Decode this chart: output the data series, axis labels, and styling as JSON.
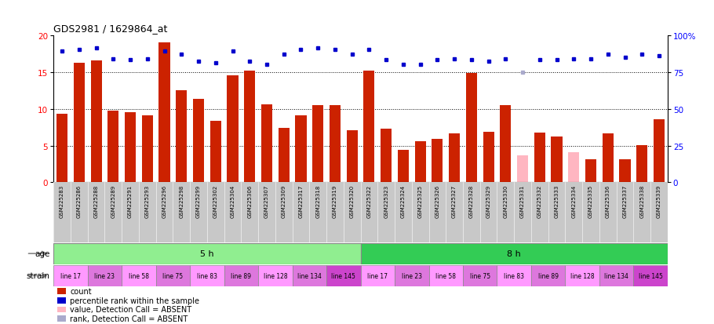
{
  "title": "GDS2981 / 1629864_at",
  "samples": [
    "GSM225283",
    "GSM225286",
    "GSM225288",
    "GSM225289",
    "GSM225291",
    "GSM225293",
    "GSM225296",
    "GSM225298",
    "GSM225299",
    "GSM225302",
    "GSM225304",
    "GSM225306",
    "GSM225307",
    "GSM225309",
    "GSM225317",
    "GSM225318",
    "GSM225319",
    "GSM225320",
    "GSM225322",
    "GSM225323",
    "GSM225324",
    "GSM225325",
    "GSM225326",
    "GSM225327",
    "GSM225328",
    "GSM225329",
    "GSM225330",
    "GSM225331",
    "GSM225332",
    "GSM225333",
    "GSM225334",
    "GSM225335",
    "GSM225336",
    "GSM225337",
    "GSM225338",
    "GSM225339"
  ],
  "bar_values": [
    9.3,
    16.2,
    16.5,
    9.7,
    9.5,
    9.1,
    19.0,
    12.5,
    11.3,
    8.3,
    14.5,
    15.2,
    10.6,
    7.4,
    9.1,
    10.5,
    10.5,
    7.1,
    15.2,
    7.3,
    4.4,
    5.6,
    5.9,
    6.7,
    14.8,
    6.9,
    10.5,
    3.7,
    6.8,
    6.2,
    4.1,
    3.1,
    6.7,
    3.1,
    5.1,
    8.6
  ],
  "bar_absent": [
    false,
    false,
    false,
    false,
    false,
    false,
    false,
    false,
    false,
    false,
    false,
    false,
    false,
    false,
    false,
    false,
    false,
    false,
    false,
    false,
    false,
    false,
    false,
    false,
    false,
    false,
    false,
    true,
    false,
    false,
    true,
    false,
    false,
    false,
    false,
    false
  ],
  "percentile_values": [
    89,
    90,
    91,
    84,
    83,
    84,
    89,
    87,
    82,
    81,
    89,
    82,
    80,
    87,
    90,
    91,
    90,
    87,
    90,
    83,
    80,
    80,
    83,
    84,
    83,
    82,
    84,
    75,
    83,
    83,
    84,
    84,
    87,
    85,
    87,
    86
  ],
  "percentile_absent": [
    false,
    false,
    false,
    false,
    false,
    false,
    false,
    false,
    false,
    false,
    false,
    false,
    false,
    false,
    false,
    false,
    false,
    false,
    false,
    false,
    false,
    false,
    false,
    false,
    false,
    false,
    false,
    true,
    false,
    false,
    false,
    false,
    false,
    false,
    false,
    false
  ],
  "age_groups": [
    {
      "label": "5 h",
      "color": "#90EE90",
      "start": 0,
      "end": 18
    },
    {
      "label": "8 h",
      "color": "#33CC55",
      "start": 18,
      "end": 36
    }
  ],
  "strain_groups": [
    {
      "label": "line 17",
      "start": 0,
      "end": 2,
      "color": "#FF99FF"
    },
    {
      "label": "line 23",
      "start": 2,
      "end": 4,
      "color": "#DD77DD"
    },
    {
      "label": "line 58",
      "start": 4,
      "end": 6,
      "color": "#FF99FF"
    },
    {
      "label": "line 75",
      "start": 6,
      "end": 8,
      "color": "#DD77DD"
    },
    {
      "label": "line 83",
      "start": 8,
      "end": 10,
      "color": "#FF99FF"
    },
    {
      "label": "line 89",
      "start": 10,
      "end": 12,
      "color": "#DD77DD"
    },
    {
      "label": "line 128",
      "start": 12,
      "end": 14,
      "color": "#FF99FF"
    },
    {
      "label": "line 134",
      "start": 14,
      "end": 16,
      "color": "#DD77DD"
    },
    {
      "label": "line 145",
      "start": 16,
      "end": 18,
      "color": "#CC44CC"
    },
    {
      "label": "line 17",
      "start": 18,
      "end": 20,
      "color": "#FF99FF"
    },
    {
      "label": "line 23",
      "start": 20,
      "end": 22,
      "color": "#DD77DD"
    },
    {
      "label": "line 58",
      "start": 22,
      "end": 24,
      "color": "#FF99FF"
    },
    {
      "label": "line 75",
      "start": 24,
      "end": 26,
      "color": "#DD77DD"
    },
    {
      "label": "line 83",
      "start": 26,
      "end": 28,
      "color": "#FF99FF"
    },
    {
      "label": "line 89",
      "start": 28,
      "end": 30,
      "color": "#DD77DD"
    },
    {
      "label": "line 128",
      "start": 30,
      "end": 32,
      "color": "#FF99FF"
    },
    {
      "label": "line 134",
      "start": 32,
      "end": 34,
      "color": "#DD77DD"
    },
    {
      "label": "line 145",
      "start": 34,
      "end": 36,
      "color": "#CC44CC"
    }
  ],
  "ylim_left": [
    0,
    20
  ],
  "ylim_right": [
    0,
    100
  ],
  "y_ticks_left": [
    0,
    5,
    10,
    15,
    20
  ],
  "y_ticks_right": [
    0,
    25,
    50,
    75,
    100
  ],
  "bar_color": "#CC2200",
  "bar_absent_color": "#FFB6C1",
  "dot_color": "#0000CC",
  "dot_absent_color": "#AAAACC",
  "bg_color": "#FFFFFF",
  "tick_area_bg": "#C8C8C8",
  "legend_items": [
    {
      "label": "count",
      "color": "#CC2200"
    },
    {
      "label": "percentile rank within the sample",
      "color": "#0000CC"
    },
    {
      "label": "value, Detection Call = ABSENT",
      "color": "#FFB6C1"
    },
    {
      "label": "rank, Detection Call = ABSENT",
      "color": "#AAAACC"
    }
  ]
}
